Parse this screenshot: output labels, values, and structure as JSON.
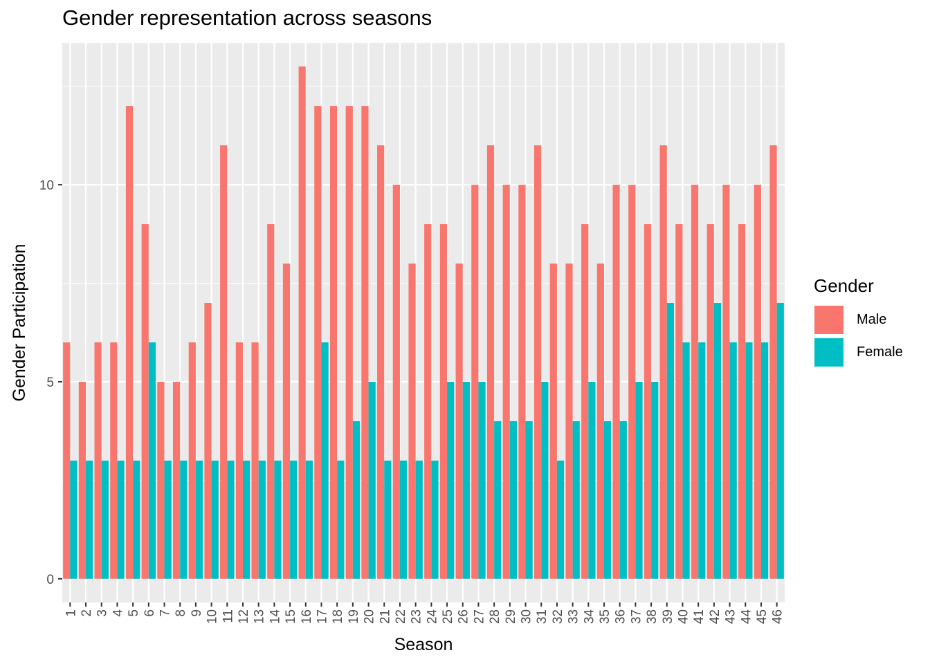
{
  "chart_data": {
    "type": "bar",
    "title": "Gender representation across seasons",
    "xlabel": "Season",
    "ylabel": "Gender Participation",
    "categories": [
      "1",
      "2",
      "3",
      "4",
      "5",
      "6",
      "7",
      "8",
      "9",
      "10",
      "11",
      "12",
      "13",
      "14",
      "15",
      "16",
      "17",
      "18",
      "19",
      "20",
      "21",
      "22",
      "23",
      "24",
      "25",
      "26",
      "27",
      "28",
      "29",
      "30",
      "31",
      "32",
      "33",
      "34",
      "35",
      "36",
      "37",
      "38",
      "39",
      "40",
      "41",
      "42",
      "43",
      "44",
      "45",
      "46"
    ],
    "series": [
      {
        "name": "Male",
        "color": "#F8766D",
        "values": [
          6,
          5,
          6,
          6,
          12,
          9,
          5,
          5,
          6,
          7,
          11,
          6,
          6,
          9,
          8,
          13,
          12,
          12,
          12,
          12,
          11,
          10,
          8,
          9,
          9,
          8,
          10,
          11,
          10,
          10,
          11,
          8,
          8,
          9,
          8,
          10,
          10,
          9,
          11,
          9,
          10,
          9,
          10,
          9,
          10,
          11
        ]
      },
      {
        "name": "Female",
        "color": "#00BFC4",
        "values": [
          3,
          3,
          3,
          3,
          3,
          6,
          3,
          3,
          3,
          3,
          3,
          3,
          3,
          3,
          3,
          3,
          6,
          3,
          4,
          5,
          3,
          3,
          3,
          3,
          5,
          5,
          5,
          4,
          4,
          4,
          5,
          3,
          4,
          5,
          4,
          4,
          5,
          5,
          7,
          6,
          6,
          7,
          6,
          6,
          6,
          7
        ]
      }
    ],
    "ylim": [
      -0.6,
      13.6
    ],
    "yticks": [
      0,
      5,
      10
    ],
    "legend_title": "Gender",
    "legend_position": "right",
    "grid": true,
    "panel_background": "#EBEBEB"
  }
}
